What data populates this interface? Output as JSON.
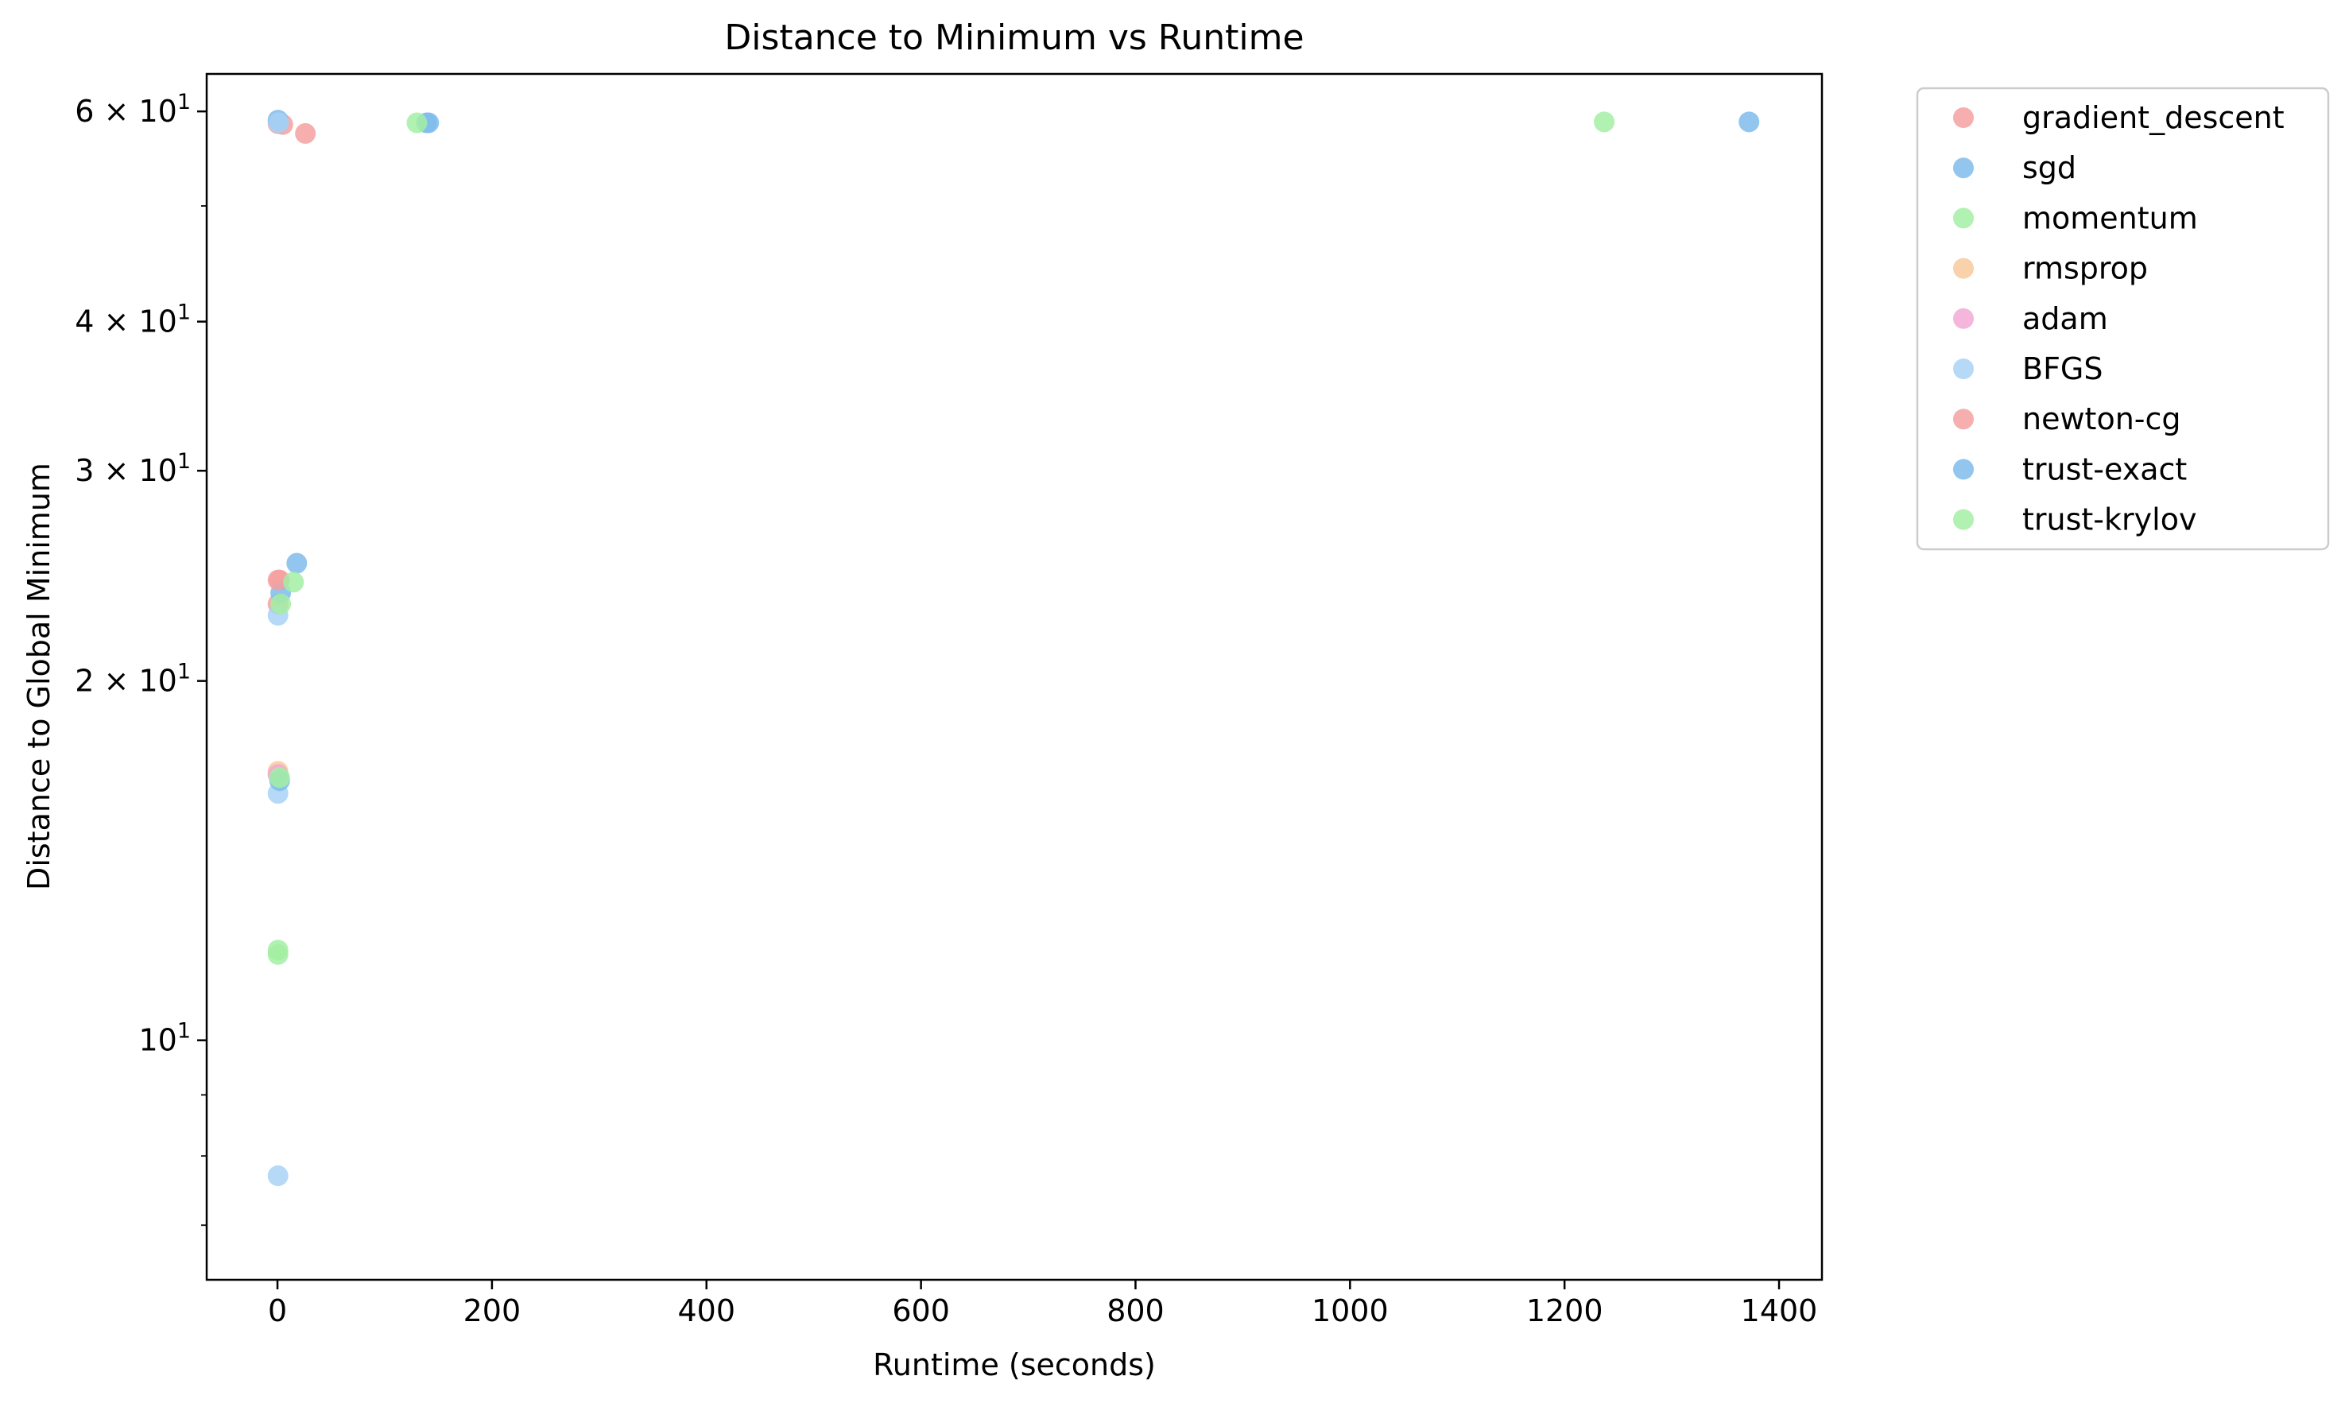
{
  "chart_data": {
    "type": "scatter",
    "title": "Distance to Minimum vs Runtime",
    "xlabel": "Runtime (seconds)",
    "ylabel": "Distance to Global Minimum",
    "xlim": [
      -66,
      1440
    ],
    "ylim": [
      6.3,
      64.5
    ],
    "yscale": "log",
    "grid": false,
    "legend_position": "outside-right-top",
    "xticks": [
      {
        "value": 0,
        "label": "0"
      },
      {
        "value": 200,
        "label": "200"
      },
      {
        "value": 400,
        "label": "400"
      },
      {
        "value": 600,
        "label": "600"
      },
      {
        "value": 800,
        "label": "800"
      },
      {
        "value": 1000,
        "label": "1000"
      },
      {
        "value": 1200,
        "label": "1200"
      },
      {
        "value": 1400,
        "label": "1400"
      }
    ],
    "yticks": [
      {
        "value": 10,
        "base": "10",
        "exp": "1"
      },
      {
        "value": 20,
        "base": "2 × 10",
        "exp": "1"
      },
      {
        "value": 30,
        "base": "3 × 10",
        "exp": "1"
      },
      {
        "value": 40,
        "base": "4 × 10",
        "exp": "1"
      },
      {
        "value": 60,
        "base": "6 × 10",
        "exp": "1"
      }
    ],
    "yminor_ticks": [
      7,
      8,
      9,
      50
    ],
    "series": [
      {
        "name": "gradient_descent",
        "color": "#f4a0a0",
        "points": [
          [
            0.5,
            58.6
          ],
          [
            2,
            24.3
          ],
          [
            0.5,
            23.2
          ],
          [
            5,
            58.5
          ],
          [
            26,
            57.5
          ]
        ]
      },
      {
        "name": "sgd",
        "color": "#7fbcec",
        "points": [
          [
            0.5,
            59.0
          ],
          [
            141,
            58.7
          ],
          [
            1372,
            58.8
          ],
          [
            3,
            23.7
          ]
        ]
      },
      {
        "name": "momentum",
        "color": "#a3eea3",
        "points": [
          [
            0.5,
            16.7
          ],
          [
            0.5,
            11.9
          ]
        ]
      },
      {
        "name": "rmsprop",
        "color": "#f8c99b",
        "points": [
          [
            0.5,
            16.8
          ]
        ]
      },
      {
        "name": "adam",
        "color": "#f2a9d4",
        "points": [
          [
            0.5,
            16.7
          ]
        ]
      },
      {
        "name": "BFGS",
        "color": "#a8d2f4",
        "points": [
          [
            0.5,
            7.7
          ],
          [
            0.5,
            16.1
          ],
          [
            0.5,
            22.7
          ],
          [
            1,
            58.7
          ]
        ]
      },
      {
        "name": "newton-cg",
        "color": "#f4a0a0",
        "points": [
          [
            0.5,
            24.3
          ]
        ]
      },
      {
        "name": "trust-exact",
        "color": "#7fbcec",
        "points": [
          [
            18,
            25.1
          ],
          [
            2,
            16.5
          ],
          [
            139,
            58.7
          ]
        ]
      },
      {
        "name": "trust-krylov",
        "color": "#a3eea3",
        "points": [
          [
            0.5,
            11.8
          ],
          [
            15,
            24.2
          ],
          [
            3,
            23.2
          ],
          [
            2,
            16.6
          ],
          [
            130,
            58.7
          ],
          [
            1237,
            58.8
          ]
        ]
      }
    ]
  }
}
